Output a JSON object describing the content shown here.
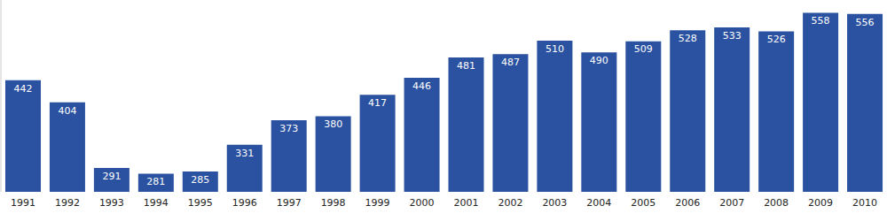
{
  "chart_data": {
    "type": "bar",
    "categories": [
      "1991",
      "1992",
      "1993",
      "1994",
      "1995",
      "1996",
      "1997",
      "1998",
      "1999",
      "2000",
      "2001",
      "2002",
      "2003",
      "2004",
      "2005",
      "2006",
      "2007",
      "2008",
      "2009",
      "2010"
    ],
    "values": [
      442,
      404,
      291,
      281,
      285,
      331,
      373,
      380,
      417,
      446,
      481,
      487,
      510,
      490,
      509,
      528,
      533,
      526,
      558,
      556
    ],
    "color": "#2a52a0",
    "ylim": [
      250,
      580
    ],
    "yticks": [
      250,
      580
    ],
    "grid": false,
    "data_labels": true,
    "tick_labels": "x"
  }
}
